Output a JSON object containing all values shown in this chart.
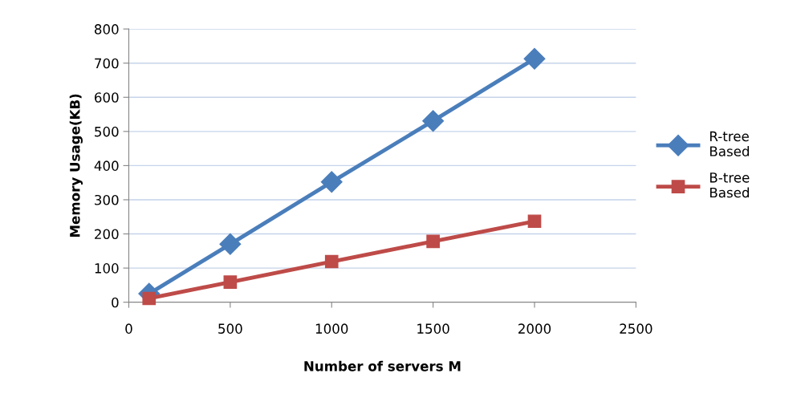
{
  "chart_data": {
    "type": "line",
    "xlabel": "Number of servers M",
    "ylabel": "Memory Usage(KB)",
    "x": [
      100,
      500,
      1000,
      1500,
      2000
    ],
    "series": [
      {
        "name": "R-tree Based",
        "color": "#4a7ebb",
        "marker": "diamond",
        "values": [
          25,
          170,
          352,
          531,
          713
        ]
      },
      {
        "name": "B-tree Based",
        "color": "#be4b48",
        "marker": "square",
        "values": [
          11,
          59,
          119,
          178,
          237
        ]
      }
    ],
    "xlim": [
      0,
      2500
    ],
    "xticks": [
      0,
      500,
      1000,
      1500,
      2000,
      2500
    ],
    "ylim": [
      0,
      800
    ],
    "yticks": [
      0,
      100,
      200,
      300,
      400,
      500,
      600,
      700,
      800
    ],
    "grid": "y",
    "legend": "right",
    "line_style": "solid"
  }
}
